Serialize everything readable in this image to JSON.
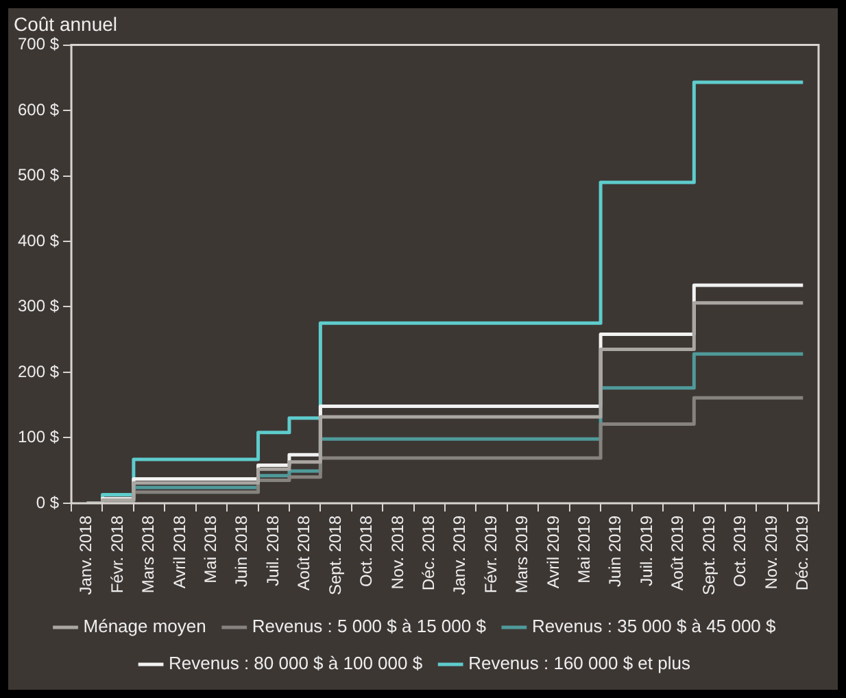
{
  "chart_data": {
    "type": "step",
    "ylabel": "Coût annuel",
    "categories": [
      "Janv. 2018",
      "Févr. 2018",
      "Mars 2018",
      "Avril 2018",
      "Mai 2018",
      "Juin 2018",
      "Juil. 2018",
      "Août 2018",
      "Sept. 2018",
      "Oct. 2018",
      "Nov. 2018",
      "Déc. 2018",
      "Janv. 2019",
      "Févr. 2019",
      "Mars 2019",
      "Avril 2019",
      "Mai 2019",
      "Juin 2019",
      "Juil. 2019",
      "Août 2019",
      "Sept. 2019",
      "Oct. 2019",
      "Nov. 2019",
      "Déc. 2019"
    ],
    "series": [
      {
        "name": "Ménage moyen",
        "color": "#aaa6a2",
        "values": [
          0,
          5,
          31,
          31,
          31,
          31,
          52,
          63,
          132,
          132,
          132,
          132,
          132,
          132,
          132,
          132,
          132,
          235,
          235,
          235,
          306,
          306,
          306,
          306
        ]
      },
      {
        "name": "Revenus : 5 000 $ à 15 000 $",
        "color": "#86827e",
        "values": [
          0,
          3,
          17,
          17,
          17,
          17,
          35,
          40,
          69,
          69,
          69,
          69,
          69,
          69,
          69,
          69,
          69,
          121,
          121,
          121,
          161,
          161,
          161,
          161
        ]
      },
      {
        "name": "Revenus : 35 000 $ à 45 000 $",
        "color": "#4f9a9a",
        "values": [
          0,
          4,
          24,
          24,
          24,
          24,
          42,
          49,
          98,
          98,
          98,
          98,
          98,
          98,
          98,
          98,
          98,
          176,
          176,
          176,
          228,
          228,
          228,
          228
        ]
      },
      {
        "name": "Revenus : 80 000 $ à 100 000 $",
        "color": "#f2f2f2",
        "values": [
          0,
          7,
          37,
          37,
          37,
          37,
          58,
          74,
          148,
          148,
          148,
          148,
          148,
          148,
          148,
          148,
          148,
          258,
          258,
          258,
          333,
          333,
          333,
          333
        ]
      },
      {
        "name": "Revenus : 160 000 $ et plus",
        "color": "#5ecccc",
        "values": [
          0,
          13,
          67,
          67,
          67,
          67,
          108,
          130,
          275,
          275,
          275,
          275,
          275,
          275,
          275,
          275,
          275,
          490,
          490,
          490,
          643,
          643,
          643,
          643
        ]
      }
    ],
    "ylim": [
      0,
      700
    ],
    "yticks": [
      {
        "value": 0,
        "label": "0 $"
      },
      {
        "value": 100,
        "label": "100 $"
      },
      {
        "value": 200,
        "label": "200 $"
      },
      {
        "value": 300,
        "label": "300 $"
      },
      {
        "value": 400,
        "label": "400 $"
      },
      {
        "value": 500,
        "label": "500 $"
      },
      {
        "value": 600,
        "label": "600 $"
      },
      {
        "value": 700,
        "label": "700 $"
      }
    ],
    "grid": false,
    "legend": "bottom",
    "line_style": "solid",
    "marker": "none"
  }
}
